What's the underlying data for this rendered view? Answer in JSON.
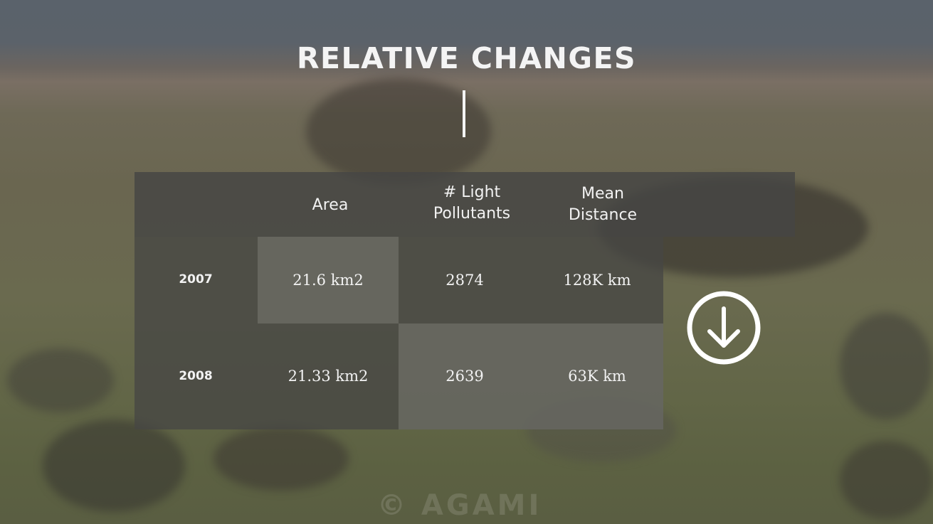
{
  "title": "RELATIVE CHANGES",
  "table": {
    "columns": [
      "Area",
      "# Light\nPollutants",
      "Mean\nDistance"
    ],
    "rows": [
      {
        "year": "2007",
        "area": "21.6 km2",
        "pollutants": "2874",
        "distance": "128K km"
      },
      {
        "year": "2008",
        "area": "21.33 km2",
        "pollutants": "2639",
        "distance": "63K km"
      }
    ]
  },
  "scroll_button": {
    "icon": "arrow-down-circle-icon"
  },
  "watermark": "© AGAMI",
  "colors": {
    "text": "#f2f2f2",
    "table_panel": "#464644"
  }
}
